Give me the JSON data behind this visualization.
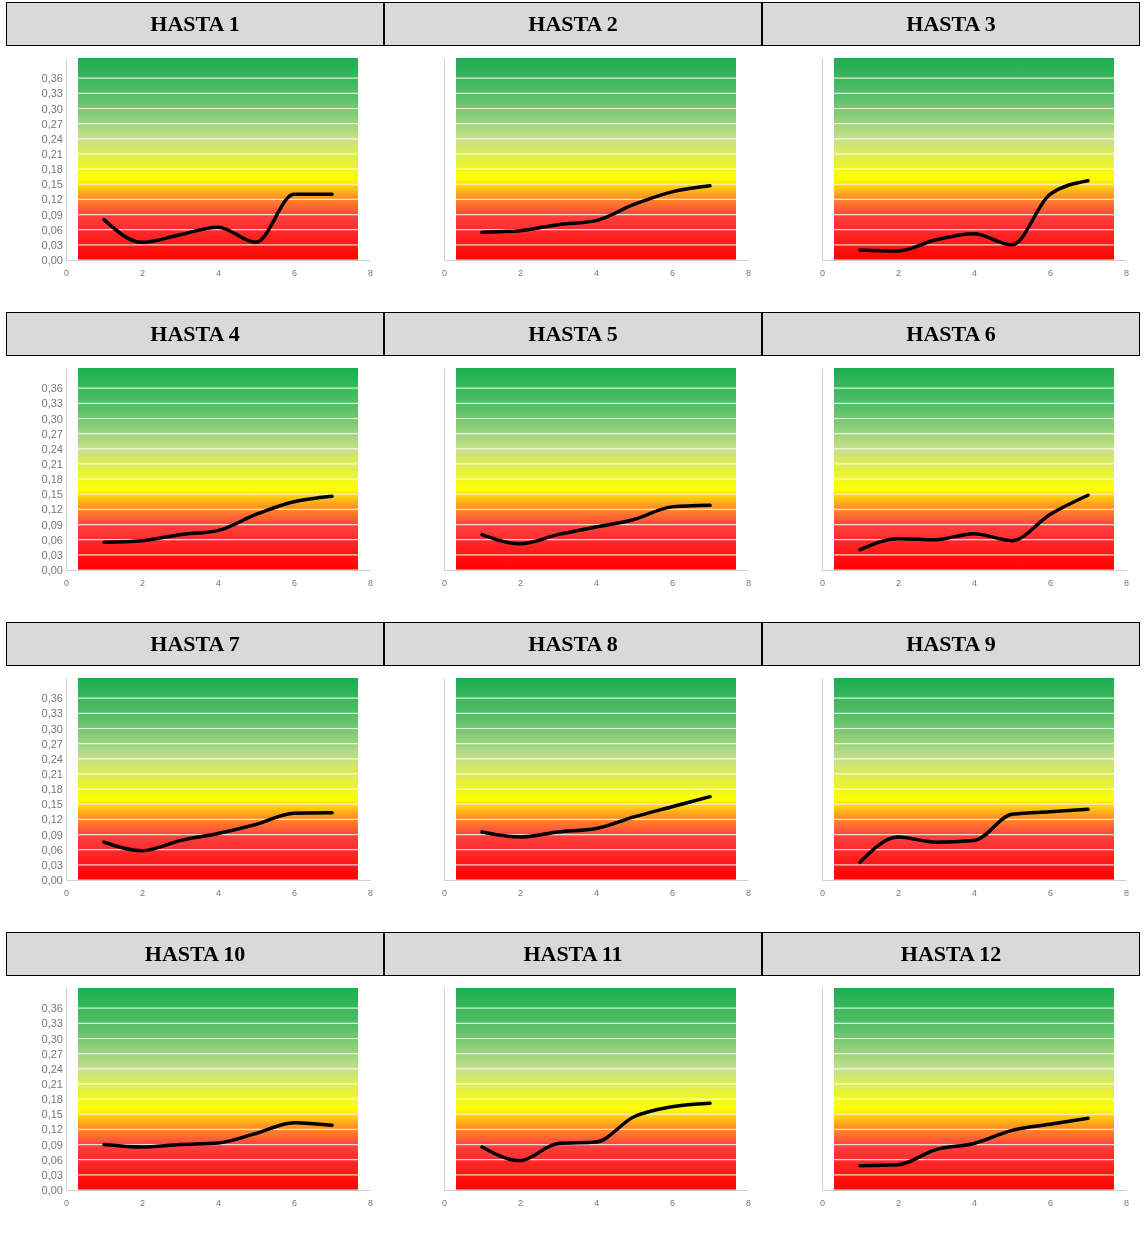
{
  "chart_data": [
    {
      "type": "line",
      "title": "HASTA 1",
      "x": [
        1,
        2,
        3,
        4,
        5,
        6,
        7
      ],
      "values": [
        0.08,
        0.035,
        0.05,
        0.065,
        0.035,
        0.13,
        0.13
      ],
      "color": "#000000",
      "xlim": [
        0,
        8
      ],
      "xticks": [
        0,
        2,
        4,
        6,
        8
      ],
      "ylim": [
        0,
        0.4
      ],
      "yticks": [
        {
          "value": 0,
          "label": "0,00"
        },
        {
          "value": 0.03,
          "label": "0,03"
        },
        {
          "value": 0.06,
          "label": "0,06"
        },
        {
          "value": 0.09,
          "label": "0,09"
        },
        {
          "value": 0.12,
          "label": "0,12"
        },
        {
          "value": 0.15,
          "label": "0,15"
        },
        {
          "value": 0.18,
          "label": "0,18"
        },
        {
          "value": 0.21,
          "label": "0,21"
        },
        {
          "value": 0.24,
          "label": "0,24"
        },
        {
          "value": 0.27,
          "label": "0,27"
        },
        {
          "value": 0.3,
          "label": "0,30"
        },
        {
          "value": 0.33,
          "label": "0,33"
        },
        {
          "value": 0.36,
          "label": "0,36"
        }
      ],
      "grid": "y"
    },
    {
      "type": "line",
      "title": "HASTA 2",
      "x": [
        1,
        2,
        3,
        4,
        5,
        6,
        7
      ],
      "values": [
        0.055,
        0.058,
        0.07,
        0.078,
        0.11,
        0.135,
        0.147
      ],
      "color": "#000000",
      "xlim": [
        0,
        8
      ],
      "xticks": [
        0,
        2,
        4,
        6,
        8
      ],
      "ylim": [
        0,
        0.4
      ],
      "yticks": [
        0,
        0.03,
        0.06,
        0.09,
        0.12,
        0.15,
        0.18,
        0.21,
        0.24,
        0.27,
        0.3,
        0.33,
        0.36
      ],
      "grid": "y",
      "tick_labels": "x"
    },
    {
      "type": "line",
      "title": "HASTA 3",
      "x": [
        1,
        2,
        3,
        4,
        5,
        6,
        7
      ],
      "values": [
        0.02,
        0.018,
        0.04,
        0.052,
        0.03,
        0.13,
        0.157
      ],
      "color": "#000000",
      "xlim": [
        0,
        8
      ],
      "xticks": [
        0,
        2,
        4,
        6,
        8
      ],
      "ylim": [
        0,
        0.4
      ],
      "yticks": [
        0,
        0.03,
        0.06,
        0.09,
        0.12,
        0.15,
        0.18,
        0.21,
        0.24,
        0.27,
        0.3,
        0.33,
        0.36
      ],
      "grid": "y",
      "tick_labels": "x"
    },
    {
      "type": "line",
      "title": "HASTA 4",
      "x": [
        1,
        2,
        3,
        4,
        5,
        6,
        7
      ],
      "values": [
        0.055,
        0.058,
        0.07,
        0.078,
        0.11,
        0.135,
        0.146
      ],
      "color": "#000000",
      "xlim": [
        0,
        8
      ],
      "xticks": [
        0,
        2,
        4,
        6,
        8
      ],
      "ylim": [
        0,
        0.4
      ],
      "yticks": [
        {
          "value": 0,
          "label": "0,00"
        },
        {
          "value": 0.03,
          "label": "0,03"
        },
        {
          "value": 0.06,
          "label": "0,06"
        },
        {
          "value": 0.09,
          "label": "0,09"
        },
        {
          "value": 0.12,
          "label": "0,12"
        },
        {
          "value": 0.15,
          "label": "0,15"
        },
        {
          "value": 0.18,
          "label": "0,18"
        },
        {
          "value": 0.21,
          "label": "0,21"
        },
        {
          "value": 0.24,
          "label": "0,24"
        },
        {
          "value": 0.27,
          "label": "0,27"
        },
        {
          "value": 0.3,
          "label": "0,30"
        },
        {
          "value": 0.33,
          "label": "0,33"
        },
        {
          "value": 0.36,
          "label": "0,36"
        }
      ],
      "grid": "y"
    },
    {
      "type": "line",
      "title": "HASTA 5",
      "x": [
        1,
        2,
        3,
        4,
        5,
        6,
        7
      ],
      "values": [
        0.07,
        0.052,
        0.07,
        0.085,
        0.1,
        0.125,
        0.128
      ],
      "color": "#000000",
      "xlim": [
        0,
        8
      ],
      "xticks": [
        0,
        2,
        4,
        6,
        8
      ],
      "ylim": [
        0,
        0.4
      ],
      "yticks": [
        0,
        0.03,
        0.06,
        0.09,
        0.12,
        0.15,
        0.18,
        0.21,
        0.24,
        0.27,
        0.3,
        0.33,
        0.36
      ],
      "grid": "y",
      "tick_labels": "x"
    },
    {
      "type": "line",
      "title": "HASTA 6",
      "x": [
        1,
        2,
        3,
        4,
        5,
        6,
        7
      ],
      "values": [
        0.04,
        0.062,
        0.06,
        0.072,
        0.058,
        0.11,
        0.148
      ],
      "color": "#000000",
      "xlim": [
        0,
        8
      ],
      "xticks": [
        0,
        2,
        4,
        6,
        8
      ],
      "ylim": [
        0,
        0.4
      ],
      "yticks": [
        0,
        0.03,
        0.06,
        0.09,
        0.12,
        0.15,
        0.18,
        0.21,
        0.24,
        0.27,
        0.3,
        0.33,
        0.36
      ],
      "grid": "y",
      "tick_labels": "x"
    },
    {
      "type": "line",
      "title": "HASTA 7",
      "x": [
        1,
        2,
        3,
        4,
        5,
        6,
        7
      ],
      "values": [
        0.075,
        0.058,
        0.078,
        0.092,
        0.11,
        0.132,
        0.133
      ],
      "color": "#000000",
      "xlim": [
        0,
        8
      ],
      "xticks": [
        0,
        2,
        4,
        6,
        8
      ],
      "ylim": [
        0,
        0.4
      ],
      "yticks": [
        {
          "value": 0,
          "label": "0,00"
        },
        {
          "value": 0.03,
          "label": "0,03"
        },
        {
          "value": 0.06,
          "label": "0,06"
        },
        {
          "value": 0.09,
          "label": "0,09"
        },
        {
          "value": 0.12,
          "label": "0,12"
        },
        {
          "value": 0.15,
          "label": "0,15"
        },
        {
          "value": 0.18,
          "label": "0,18"
        },
        {
          "value": 0.21,
          "label": "0,21"
        },
        {
          "value": 0.24,
          "label": "0,24"
        },
        {
          "value": 0.27,
          "label": "0,27"
        },
        {
          "value": 0.3,
          "label": "0,30"
        },
        {
          "value": 0.33,
          "label": "0,33"
        },
        {
          "value": 0.36,
          "label": "0,36"
        }
      ],
      "grid": "y"
    },
    {
      "type": "line",
      "title": "HASTA 8",
      "x": [
        1,
        2,
        3,
        4,
        5,
        6,
        7
      ],
      "values": [
        0.095,
        0.085,
        0.095,
        0.102,
        0.125,
        0.145,
        0.165
      ],
      "color": "#000000",
      "xlim": [
        0,
        8
      ],
      "xticks": [
        0,
        2,
        4,
        6,
        8
      ],
      "ylim": [
        0,
        0.4
      ],
      "yticks": [
        0,
        0.03,
        0.06,
        0.09,
        0.12,
        0.15,
        0.18,
        0.21,
        0.24,
        0.27,
        0.3,
        0.33,
        0.36
      ],
      "grid": "y",
      "tick_labels": "x"
    },
    {
      "type": "line",
      "title": "HASTA 9",
      "x": [
        1,
        2,
        3,
        4,
        5,
        6,
        7
      ],
      "values": [
        0.035,
        0.085,
        0.075,
        0.078,
        0.13,
        0.135,
        0.14
      ],
      "color": "#000000",
      "xlim": [
        0,
        8
      ],
      "xticks": [
        0,
        2,
        4,
        6,
        8
      ],
      "ylim": [
        0,
        0.4
      ],
      "yticks": [
        0,
        0.03,
        0.06,
        0.09,
        0.12,
        0.15,
        0.18,
        0.21,
        0.24,
        0.27,
        0.3,
        0.33,
        0.36
      ],
      "grid": "y",
      "tick_labels": "x"
    },
    {
      "type": "line",
      "title": "HASTA 10",
      "x": [
        1,
        2,
        3,
        4,
        5,
        6,
        7
      ],
      "values": [
        0.09,
        0.085,
        0.09,
        0.093,
        0.112,
        0.133,
        0.128
      ],
      "color": "#000000",
      "xlim": [
        0,
        8
      ],
      "xticks": [
        0,
        2,
        4,
        6,
        8
      ],
      "ylim": [
        0,
        0.4
      ],
      "yticks": [
        {
          "value": 0,
          "label": "0,00"
        },
        {
          "value": 0.03,
          "label": "0,03"
        },
        {
          "value": 0.06,
          "label": "0,06"
        },
        {
          "value": 0.09,
          "label": "0,09"
        },
        {
          "value": 0.12,
          "label": "0,12"
        },
        {
          "value": 0.15,
          "label": "0,15"
        },
        {
          "value": 0.18,
          "label": "0,18"
        },
        {
          "value": 0.21,
          "label": "0,21"
        },
        {
          "value": 0.24,
          "label": "0,24"
        },
        {
          "value": 0.27,
          "label": "0,27"
        },
        {
          "value": 0.3,
          "label": "0,30"
        },
        {
          "value": 0.33,
          "label": "0,33"
        },
        {
          "value": 0.36,
          "label": "0,36"
        }
      ],
      "grid": "y"
    },
    {
      "type": "line",
      "title": "HASTA 11",
      "x": [
        1,
        2,
        3,
        4,
        5,
        6,
        7
      ],
      "values": [
        0.085,
        0.058,
        0.092,
        0.095,
        0.145,
        0.165,
        0.172
      ],
      "color": "#000000",
      "xlim": [
        0,
        8
      ],
      "xticks": [
        0,
        2,
        4,
        6,
        8
      ],
      "ylim": [
        0,
        0.4
      ],
      "yticks": [
        0,
        0.03,
        0.06,
        0.09,
        0.12,
        0.15,
        0.18,
        0.21,
        0.24,
        0.27,
        0.3,
        0.33,
        0.36
      ],
      "grid": "y",
      "tick_labels": "x"
    },
    {
      "type": "line",
      "title": "HASTA 12",
      "x": [
        1,
        2,
        3,
        4,
        5,
        6,
        7
      ],
      "values": [
        0.048,
        0.05,
        0.08,
        0.092,
        0.118,
        0.13,
        0.142
      ],
      "color": "#000000",
      "xlim": [
        0,
        8
      ],
      "xticks": [
        0,
        2,
        4,
        6,
        8
      ],
      "ylim": [
        0,
        0.4
      ],
      "yticks": [
        0,
        0.03,
        0.06,
        0.09,
        0.12,
        0.15,
        0.18,
        0.21,
        0.24,
        0.27,
        0.3,
        0.33,
        0.36
      ],
      "grid": "y",
      "tick_labels": "x"
    }
  ]
}
